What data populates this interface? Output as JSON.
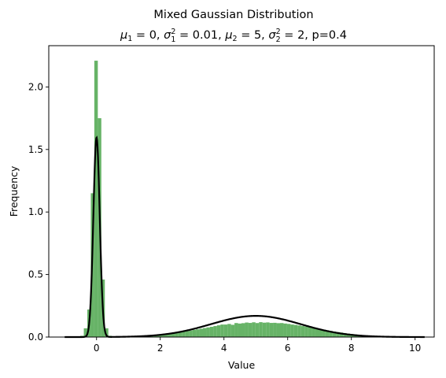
{
  "chart_data": {
    "type": "bar",
    "title": "Mixed Gaussian Distribution",
    "subtitle_parts": {
      "mu1_sym": "μ",
      "mu1_sub": "1",
      "mu1_val": " = 0, ",
      "sig1_sym": "σ",
      "sig1_sup": "2",
      "sig1_sub": "1",
      "sig1_val": " = 0.01, ",
      "mu2_sym": "μ",
      "mu2_sub": "2",
      "mu2_val": " = 5, ",
      "sig2_sym": "σ",
      "sig2_sup": "2",
      "sig2_sub": "2",
      "sig2_val": " = 2, p=0.4"
    },
    "xlabel": "Value",
    "ylabel": "Frequency",
    "xlim": [
      -1.5,
      10.6
    ],
    "ylim": [
      0,
      2.33
    ],
    "xticks": [
      0,
      2,
      4,
      6,
      8,
      10
    ],
    "xtick_labels": [
      "0",
      "2",
      "4",
      "6",
      "8",
      "10"
    ],
    "yticks": [
      0.0,
      0.5,
      1.0,
      1.5,
      2.0
    ],
    "ytick_labels": [
      "0.0",
      "0.5",
      "1.0",
      "1.5",
      "2.0"
    ],
    "grid": false,
    "bar_color": "#4CA64C",
    "curve_color": "#000000",
    "histogram": {
      "bin_width": 0.11,
      "bin_starts": [
        -0.51,
        -0.4,
        -0.29,
        -0.18,
        -0.07,
        0.04,
        0.15,
        0.26,
        0.37,
        0.48,
        0.59,
        0.7,
        0.81,
        0.92,
        1.03,
        1.14,
        1.25,
        1.36,
        1.47,
        1.58,
        1.69,
        1.8,
        1.91,
        2.02,
        2.13,
        2.24,
        2.35,
        2.46,
        2.57,
        2.68,
        2.79,
        2.9,
        3.01,
        3.12,
        3.23,
        3.34,
        3.45,
        3.56,
        3.67,
        3.78,
        3.89,
        4.0,
        4.11,
        4.22,
        4.33,
        4.44,
        4.55,
        4.66,
        4.77,
        4.88,
        4.99,
        5.1,
        5.21,
        5.32,
        5.43,
        5.54,
        5.65,
        5.76,
        5.87,
        5.98,
        6.09,
        6.2,
        6.31,
        6.42,
        6.53,
        6.64,
        6.75,
        6.86,
        6.97,
        7.08,
        7.19,
        7.3,
        7.41,
        7.52,
        7.63,
        7.74,
        7.85,
        7.96,
        8.07,
        8.18,
        8.29,
        8.4,
        8.51,
        8.62,
        8.73,
        8.84,
        8.95,
        9.06,
        9.17,
        9.28,
        9.39,
        9.5,
        9.61,
        9.72,
        9.83
      ],
      "heights": [
        0.01,
        0.07,
        0.22,
        1.15,
        2.21,
        1.75,
        0.46,
        0.07,
        0.01,
        0.002,
        0.003,
        0.004,
        0.004,
        0.005,
        0.006,
        0.007,
        0.008,
        0.009,
        0.011,
        0.013,
        0.015,
        0.017,
        0.019,
        0.022,
        0.025,
        0.028,
        0.031,
        0.035,
        0.039,
        0.043,
        0.047,
        0.052,
        0.057,
        0.062,
        0.067,
        0.072,
        0.077,
        0.082,
        0.088,
        0.094,
        0.1,
        0.1,
        0.105,
        0.098,
        0.112,
        0.108,
        0.111,
        0.116,
        0.113,
        0.118,
        0.112,
        0.119,
        0.115,
        0.117,
        0.113,
        0.114,
        0.111,
        0.112,
        0.108,
        0.105,
        0.1,
        0.097,
        0.093,
        0.088,
        0.084,
        0.079,
        0.074,
        0.069,
        0.064,
        0.059,
        0.054,
        0.049,
        0.044,
        0.04,
        0.036,
        0.032,
        0.028,
        0.024,
        0.021,
        0.018,
        0.015,
        0.013,
        0.011,
        0.009,
        0.007,
        0.006,
        0.005,
        0.004,
        0.003,
        0.002,
        0.002,
        0.001,
        0.001,
        0.001,
        0.001
      ]
    },
    "density_curve": {
      "x_start": -1.0,
      "x_end": 10.3,
      "mixture": {
        "p": 0.4,
        "mu1": 0,
        "var1": 0.01,
        "mu2": 5,
        "var2": 2
      }
    }
  }
}
